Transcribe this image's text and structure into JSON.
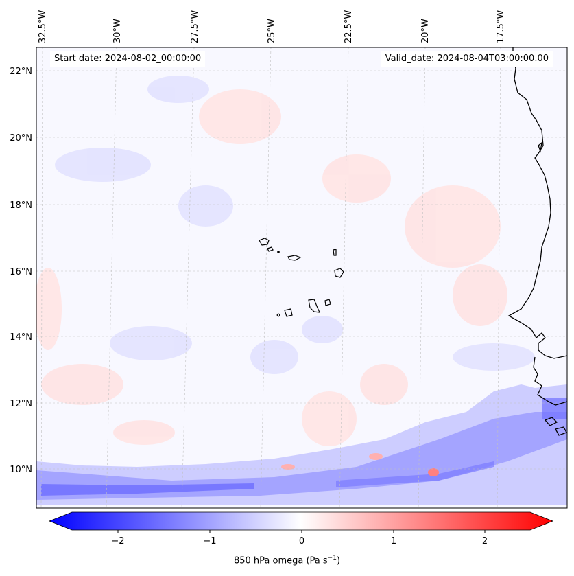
{
  "map": {
    "header": {
      "start_date": "Start date: 2024-08-02_00:00:00",
      "valid_date": "Valid_date: 2024-08-04T03:00:00.00"
    },
    "lon_labels": [
      "32.5°W",
      "30°W",
      "27.5°W",
      "25°W",
      "22.5°W",
      "20°W",
      "17.5°W"
    ],
    "lat_labels": [
      "22°N",
      "20°N",
      "18°N",
      "16°N",
      "14°N",
      "12°N",
      "10°N"
    ],
    "field": "850 hPa omega",
    "units_prefix": "850 hPa omega (Pa s",
    "units_exp": "−1",
    "units_suffix": ")",
    "colorbar": {
      "ticks": [
        "−2",
        "−1",
        "0",
        "1",
        "2"
      ],
      "min": -2.5,
      "max": 2.5,
      "cmap": "bwr",
      "colors": {
        "negative": "#0000ff",
        "zero": "#ffffff",
        "positive": "#ff0000"
      }
    },
    "coastline_color": "#000000",
    "gridline_color": "#c0c0c0"
  }
}
